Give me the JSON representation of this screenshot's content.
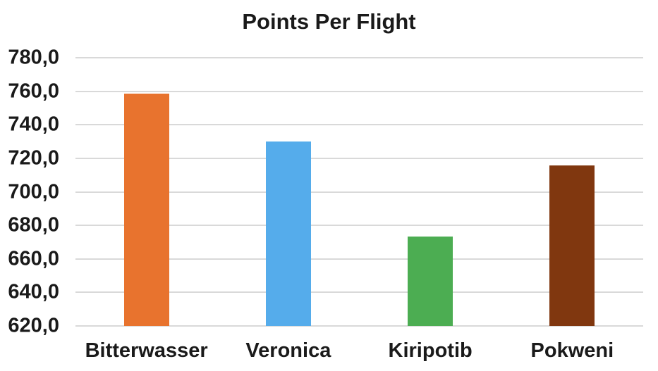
{
  "chart_data": {
    "type": "bar",
    "title": "Points Per Flight",
    "categories": [
      "Bitterwasser",
      "Veronica",
      "Kiripotib",
      "Pokweni"
    ],
    "values": [
      758.4,
      730.2,
      673.4,
      715.9
    ],
    "colors": [
      "#E8732E",
      "#55ACEB",
      "#4CAD52",
      "#80370F"
    ],
    "xlabel": "",
    "ylabel": "",
    "ylim": [
      620,
      780
    ],
    "y_tick_step": 20,
    "y_ticks": [
      {
        "value": 620,
        "label": "620,0"
      },
      {
        "value": 640,
        "label": "640,0"
      },
      {
        "value": 660,
        "label": "660,0"
      },
      {
        "value": 680,
        "label": "680,0"
      },
      {
        "value": 700,
        "label": "700,0"
      },
      {
        "value": 720,
        "label": "720,0"
      },
      {
        "value": 740,
        "label": "740,0"
      },
      {
        "value": 760,
        "label": "760,0"
      },
      {
        "value": 780,
        "label": "780,0"
      }
    ],
    "grid": true,
    "legend": false,
    "gridline_color": "#D9D9D9",
    "text_color": "#1A1A1A",
    "background": "#FFFFFF"
  }
}
